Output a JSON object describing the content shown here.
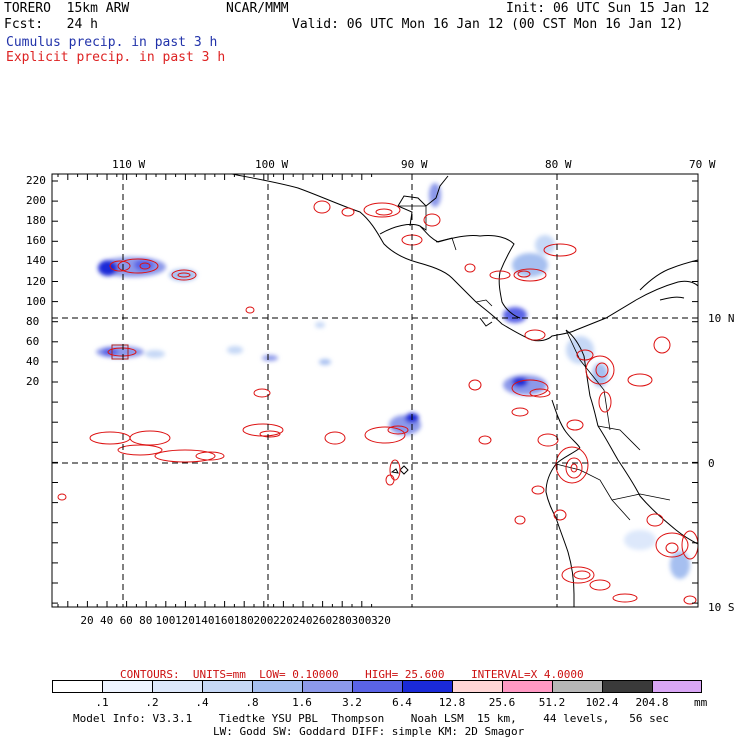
{
  "header": {
    "model": "TORERO  15km ARW",
    "org": "NCAR/MMM",
    "init": "Init: 06 UTC Sun 15 Jan 12",
    "fcst": "Fcst:   24 h",
    "valid": "Valid: 06 UTC Mon 16 Jan 12 (00 CST Mon 16 Jan 12)",
    "cumulus": "Cumulus precip. in past 3 h",
    "explicit": "Explicit precip. in past 3 h"
  },
  "map": {
    "lon_labels": [
      "110 W",
      "100 W",
      "90 W",
      "80 W",
      "70 W"
    ],
    "lat_labels": [
      "10 N",
      "0",
      "10 S"
    ],
    "y_ticks": [
      "220",
      "200",
      "180",
      "160",
      "140",
      "120",
      "100",
      "80",
      "60",
      "40",
      "20"
    ],
    "x_ticks": [
      "20",
      "40",
      "60",
      "80",
      "100",
      "120",
      "140",
      "160",
      "180",
      "200",
      "220",
      "240",
      "260",
      "280",
      "300",
      "320"
    ]
  },
  "contours": {
    "label_prefix": "CONTOURS:",
    "units": "UNITS=mm",
    "low": "LOW= 0.10000",
    "high": "HIGH= 25.600",
    "interval": "INTERVAL=X 4.0000"
  },
  "legend": {
    "unit": "mm",
    "labels": [
      ".1",
      ".2",
      ".4",
      ".8",
      "1.6",
      "3.2",
      "6.4",
      "12.8",
      "25.6",
      "51.2",
      "102.4",
      "204.8"
    ],
    "colors": [
      "#ffffff",
      "#eef4ff",
      "#dde8fb",
      "#c6d8f6",
      "#a6bff0",
      "#8c99ea",
      "#5a63e6",
      "#1a2ad8",
      "#ffd6d6",
      "#ff99c4",
      "#b7b7b7",
      "#3a3a3a",
      "#d9a6f5"
    ]
  },
  "footer": {
    "line1": "Model Info: V3.3.1    Tiedtke YSU PBL  Thompson    Noah LSM  15 km,    44 levels,   56 sec",
    "line2": "LW: Godd SW: Goddard DIFF: simple KM: 2D Smagor"
  }
}
